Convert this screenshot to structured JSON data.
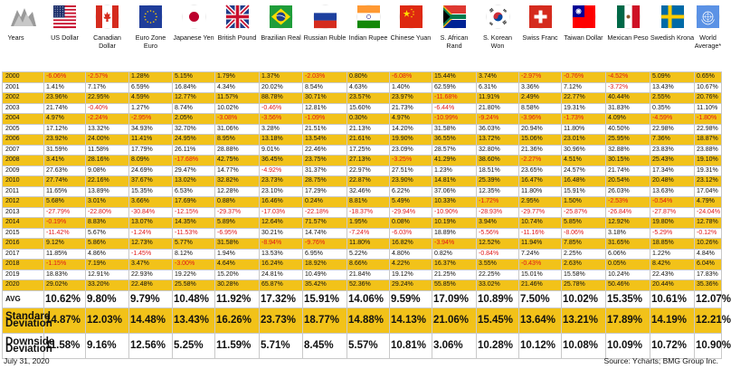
{
  "header": {
    "years_label": "Years",
    "columns": [
      {
        "label": "US Dollar",
        "flag": "us-flag"
      },
      {
        "label": "Canadian Dollar",
        "flag": "canada-flag"
      },
      {
        "label": "Euro Zone Euro",
        "flag": "eu-flag"
      },
      {
        "label": "Japanese Yen",
        "flag": "japan-flag"
      },
      {
        "label": "British Pound",
        "flag": "uk-flag"
      },
      {
        "label": "Brazilian Real",
        "flag": "brazil-flag"
      },
      {
        "label": "Russian Ruble",
        "flag": "russia-flag"
      },
      {
        "label": "Indian Rupee",
        "flag": "india-flag"
      },
      {
        "label": "Chinese Yuan",
        "flag": "china-flag"
      },
      {
        "label": "S. African Rand",
        "flag": "south-africa-flag"
      },
      {
        "label": "S. Korean Won",
        "flag": "south-korea-flag"
      },
      {
        "label": "Swiss Franc",
        "flag": "switzerland-flag"
      },
      {
        "label": "Taiwan Dollar",
        "flag": "taiwan-flag"
      },
      {
        "label": "Mexican Peso",
        "flag": "mexico-flag"
      },
      {
        "label": "Swedish Krona",
        "flag": "sweden-flag"
      },
      {
        "label": "World Average*",
        "flag": "un-flag"
      }
    ]
  },
  "rows": [
    {
      "year": "2000",
      "values": [
        "-6.06%",
        "-2.57%",
        "1.28%",
        "5.15%",
        "1.79%",
        "1.37%",
        "-2.03%",
        "0.80%",
        "-6.08%",
        "15.44%",
        "3.74%",
        "-2.97%",
        "-0.76%",
        "-4.52%",
        "5.09%",
        "0.65%"
      ]
    },
    {
      "year": "2001",
      "values": [
        "1.41%",
        "7.17%",
        "6.59%",
        "16.84%",
        "4.34%",
        "20.02%",
        "8.54%",
        "4.63%",
        "1.40%",
        "62.59%",
        "6.31%",
        "3.36%",
        "7.12%",
        "-3.72%",
        "13.43%",
        "10.67%"
      ]
    },
    {
      "year": "2002",
      "values": [
        "23.96%",
        "22.95%",
        "4.59%",
        "12.77%",
        "11.57%",
        "88.78%",
        "30.71%",
        "23.57%",
        "23.97%",
        "-11.68%",
        "11.91%",
        "2.49%",
        "22.77%",
        "40.44%",
        "2.55%",
        "20.76%"
      ]
    },
    {
      "year": "2003",
      "values": [
        "21.74%",
        "-0.40%",
        "1.27%",
        "8.74%",
        "10.02%",
        "-0.46%",
        "12.81%",
        "15.60%",
        "21.73%",
        "-6.44%",
        "21.80%",
        "8.58%",
        "19.31%",
        "31.83%",
        "0.35%",
        "11.10%"
      ]
    },
    {
      "year": "2004",
      "values": [
        "4.97%",
        "-2.24%",
        "-2.95%",
        "2.05%",
        "-3.08%",
        "-3.56%",
        "-1.09%",
        "0.30%",
        "4.97%",
        "-10.99%",
        "-9.24%",
        "-3.96%",
        "-1.73%",
        "4.09%",
        "-4.59%",
        "-1.80%"
      ]
    },
    {
      "year": "2005",
      "values": [
        "17.12%",
        "13.32%",
        "34.93%",
        "32.70%",
        "31.06%",
        "3.28%",
        "21.51%",
        "21.13%",
        "14.20%",
        "31.58%",
        "36.03%",
        "20.94%",
        "11.80%",
        "40.50%",
        "22.98%",
        "22.98%"
      ]
    },
    {
      "year": "2006",
      "values": [
        "23.92%",
        "24.00%",
        "11.41%",
        "24.95%",
        "8.95%",
        "13.18%",
        "13.54%",
        "21.61%",
        "19.90%",
        "36.55%",
        "13.72%",
        "15.06%",
        "23.01%",
        "25.95%",
        "7.36%",
        "18.87%"
      ]
    },
    {
      "year": "2007",
      "values": [
        "31.59%",
        "11.58%",
        "17.79%",
        "26.11%",
        "28.88%",
        "9.01%",
        "22.46%",
        "17.25%",
        "23.09%",
        "28.57%",
        "32.80%",
        "21.36%",
        "30.96%",
        "32.88%",
        "23.83%",
        "23.88%"
      ]
    },
    {
      "year": "2008",
      "values": [
        "3.41%",
        "28.16%",
        "8.09%",
        "-17.68%",
        "42.75%",
        "36.45%",
        "23.75%",
        "27.13%",
        "-3.25%",
        "41.29%",
        "38.60%",
        "-2.27%",
        "4.51%",
        "30.15%",
        "25.43%",
        "19.10%"
      ]
    },
    {
      "year": "2009",
      "values": [
        "27.63%",
        "9.08%",
        "24.69%",
        "29.47%",
        "14.77%",
        "-4.92%",
        "31.37%",
        "22.97%",
        "27.51%",
        "1.23%",
        "18.51%",
        "23.65%",
        "24.57%",
        "21.74%",
        "17.34%",
        "19.31%"
      ]
    },
    {
      "year": "2010",
      "values": [
        "27.74%",
        "22.16%",
        "37.67%",
        "13.02%",
        "32.82%",
        "23.73%",
        "28.75%",
        "22.87%",
        "23.90%",
        "14.81%",
        "25.39%",
        "16.47%",
        "16.48%",
        "20.54%",
        "20.48%",
        "23.12%"
      ]
    },
    {
      "year": "2011",
      "values": [
        "11.65%",
        "13.89%",
        "15.35%",
        "6.53%",
        "12.28%",
        "23.10%",
        "17.29%",
        "32.46%",
        "6.22%",
        "37.06%",
        "12.35%",
        "11.80%",
        "15.91%",
        "26.03%",
        "13.63%",
        "17.04%"
      ]
    },
    {
      "year": "2012",
      "values": [
        "5.68%",
        "3.01%",
        "3.66%",
        "17.69%",
        "0.88%",
        "16.46%",
        "0.24%",
        "8.81%",
        "5.49%",
        "10.33%",
        "-1.72%",
        "2.95%",
        "1.50%",
        "-2.53%",
        "-0.54%",
        "4.79%"
      ]
    },
    {
      "year": "2013",
      "values": [
        "-27.79%",
        "-22.80%",
        "-30.84%",
        "-12.15%",
        "-29.37%",
        "-17.03%",
        "-22.18%",
        "-18.37%",
        "-29.94%",
        "-10.90%",
        "-28.93%",
        "-29.77%",
        "-25.87%",
        "-26.84%",
        "-27.87%",
        "-24.04%"
      ]
    },
    {
      "year": "2014",
      "values": [
        "-0.19%",
        "8.83%",
        "13.07%",
        "14.35%",
        "5.89%",
        "12.64%",
        "71.57%",
        "1.95%",
        "0.08%",
        "10.19%",
        "3.94%",
        "10.74%",
        "5.85%",
        "12.92%",
        "19.80%",
        "12.78%"
      ]
    },
    {
      "year": "2015",
      "values": [
        "-11.42%",
        "5.67%",
        "-1.24%",
        "-11.53%",
        "-6.95%",
        "30.21%",
        "14.74%",
        "-7.24%",
        "-6.03%",
        "18.89%",
        "-5.56%",
        "-11.16%",
        "-8.06%",
        "3.18%",
        "-5.29%",
        "-0.12%"
      ]
    },
    {
      "year": "2016",
      "values": [
        "9.12%",
        "5.86%",
        "12.73%",
        "5.77%",
        "31.58%",
        "-8.94%",
        "-9.76%",
        "11.80%",
        "16.82%",
        "-3.94%",
        "12.52%",
        "11.94%",
        "7.85%",
        "31.65%",
        "18.85%",
        "10.26%"
      ]
    },
    {
      "year": "2017",
      "values": [
        "11.85%",
        "4.86%",
        "-1.45%",
        "8.12%",
        "1.94%",
        "13.53%",
        "6.95%",
        "5.22%",
        "4.80%",
        "0.82%",
        "-0.84%",
        "7.24%",
        "2.25%",
        "6.06%",
        "1.22%",
        "4.84%"
      ]
    },
    {
      "year": "2018",
      "values": [
        "-1.15%",
        "7.19%",
        "3.47%",
        "-3.00%",
        "4.64%",
        "16.24%",
        "18.92%",
        "8.66%",
        "4.22%",
        "16.37%",
        "3.55%",
        "-0.43%",
        "2.63%",
        "0.05%",
        "8.42%",
        "6.04%"
      ]
    },
    {
      "year": "2019",
      "values": [
        "18.83%",
        "12.91%",
        "22.93%",
        "19.22%",
        "15.20%",
        "24.81%",
        "10.49%",
        "21.84%",
        "19.12%",
        "21.25%",
        "22.25%",
        "15.01%",
        "15.58%",
        "10.24%",
        "22.43%",
        "17.83%"
      ]
    },
    {
      "year": "2020",
      "values": [
        "29.02%",
        "33.20%",
        "22.48%",
        "25.58%",
        "30.28%",
        "65.87%",
        "35.42%",
        "52.36%",
        "29.24%",
        "55.85%",
        "33.02%",
        "21.46%",
        "25.78%",
        "50.46%",
        "20.44%",
        "35.36%"
      ]
    }
  ],
  "stats": [
    {
      "label": "AVG",
      "values": [
        "10.62%",
        "9.80%",
        "9.79%",
        "10.48%",
        "11.92%",
        "17.32%",
        "15.91%",
        "14.06%",
        "9.59%",
        "17.09%",
        "10.89%",
        "7.50%",
        "10.02%",
        "15.35%",
        "10.61%",
        "12.07%"
      ]
    },
    {
      "label": "Standard Deviation",
      "values": [
        "14.87%",
        "12.03%",
        "14.48%",
        "13.43%",
        "16.26%",
        "23.73%",
        "18.77%",
        "14.88%",
        "14.13%",
        "21.06%",
        "15.45%",
        "13.64%",
        "13.21%",
        "17.89%",
        "14.19%",
        "12.21%"
      ]
    },
    {
      "label": "Downside Deviation",
      "values": [
        "11.58%",
        "9.16%",
        "12.56%",
        "5.25%",
        "11.59%",
        "5.71%",
        "8.45%",
        "5.57%",
        "10.81%",
        "3.06%",
        "10.28%",
        "10.12%",
        "10.08%",
        "10.09%",
        "10.72%",
        "10.90%"
      ]
    }
  ],
  "footer": {
    "date": "July 31, 2020",
    "source": "Source: Ycharts; BMG Group Inc."
  },
  "colors": {
    "highlight": "#f2c219",
    "negative": "#e01818",
    "grid": "#c9c9c9"
  }
}
